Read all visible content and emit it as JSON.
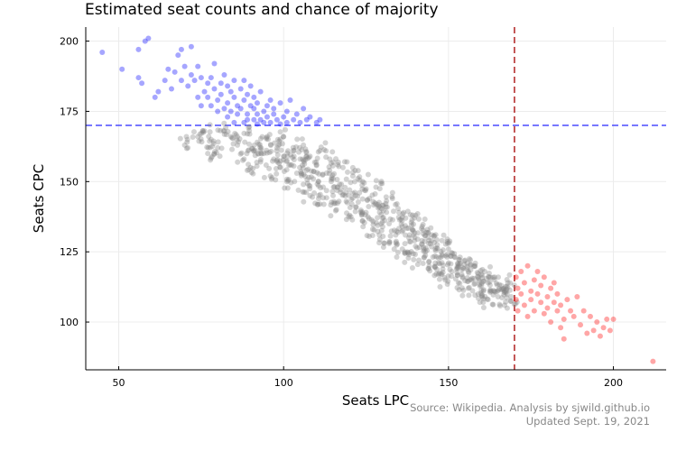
{
  "chart_data": {
    "type": "scatter",
    "title": "Estimated seat counts and chance of majority",
    "xlabel": "Seats LPC",
    "ylabel": "Seats CPC",
    "xlim": [
      40,
      216
    ],
    "ylim": [
      83,
      205
    ],
    "xticks": [
      50,
      100,
      150,
      200
    ],
    "yticks": [
      100,
      125,
      150,
      175,
      200
    ],
    "grid": true,
    "majority_threshold": 170,
    "reference_lines": [
      {
        "orientation": "horizontal",
        "value": 170,
        "color": "#4a4aff",
        "style": "dashed"
      },
      {
        "orientation": "vertical",
        "value": 170,
        "color": "#b02020",
        "style": "dashed"
      }
    ],
    "series": [
      {
        "color": "#0000ff",
        "points": [
          [
            45,
            196
          ],
          [
            51,
            190
          ],
          [
            56,
            197
          ],
          [
            56,
            187
          ],
          [
            57,
            185
          ],
          [
            58,
            200
          ],
          [
            59,
            201
          ],
          [
            61,
            180
          ],
          [
            62,
            182
          ],
          [
            64,
            186
          ],
          [
            65,
            190
          ],
          [
            66,
            183
          ],
          [
            67,
            189
          ],
          [
            68,
            195
          ],
          [
            69,
            197
          ],
          [
            69,
            186
          ],
          [
            70,
            191
          ],
          [
            71,
            184
          ],
          [
            72,
            198
          ],
          [
            72,
            188
          ],
          [
            73,
            186
          ],
          [
            74,
            180
          ],
          [
            74,
            191
          ],
          [
            75,
            187
          ],
          [
            75,
            177
          ],
          [
            76,
            182
          ],
          [
            77,
            180
          ],
          [
            77,
            185
          ],
          [
            78,
            177
          ],
          [
            78,
            187
          ],
          [
            79,
            183
          ],
          [
            79,
            192
          ],
          [
            80,
            175
          ],
          [
            80,
            179
          ],
          [
            81,
            185
          ],
          [
            81,
            181
          ],
          [
            82,
            176
          ],
          [
            82,
            188
          ],
          [
            83,
            173
          ],
          [
            83,
            178
          ],
          [
            83,
            184
          ],
          [
            84,
            182
          ],
          [
            84,
            175
          ],
          [
            85,
            180
          ],
          [
            85,
            186
          ],
          [
            85,
            171
          ],
          [
            86,
            177
          ],
          [
            86,
            174
          ],
          [
            87,
            183
          ],
          [
            87,
            176
          ],
          [
            88,
            171
          ],
          [
            88,
            179
          ],
          [
            88,
            186
          ],
          [
            89,
            174
          ],
          [
            89,
            181
          ],
          [
            89,
            172
          ],
          [
            90,
            177
          ],
          [
            90,
            184
          ],
          [
            91,
            172
          ],
          [
            91,
            176
          ],
          [
            91,
            180
          ],
          [
            92,
            174
          ],
          [
            92,
            170.5
          ],
          [
            92,
            178
          ],
          [
            93,
            172
          ],
          [
            93,
            182
          ],
          [
            94,
            175
          ],
          [
            94,
            171
          ],
          [
            95,
            177
          ],
          [
            95,
            173
          ],
          [
            96,
            179
          ],
          [
            96,
            171
          ],
          [
            97,
            174
          ],
          [
            97,
            176
          ],
          [
            98,
            172
          ],
          [
            99,
            178
          ],
          [
            99,
            170.5
          ],
          [
            100,
            173
          ],
          [
            101,
            175
          ],
          [
            101,
            171
          ],
          [
            102,
            179
          ],
          [
            103,
            172
          ],
          [
            104,
            174
          ],
          [
            105,
            171
          ],
          [
            106,
            176
          ],
          [
            107,
            172
          ],
          [
            108,
            173
          ],
          [
            110,
            171
          ],
          [
            111,
            172
          ]
        ]
      },
      {
        "color": "#808080",
        "points": [
          [
            70,
            163
          ],
          [
            74,
            166
          ],
          [
            76,
            168
          ],
          [
            77,
            160
          ],
          [
            78,
            165
          ],
          [
            80,
            162
          ],
          [
            82,
            168
          ],
          [
            84,
            166
          ],
          [
            86,
            163
          ],
          [
            88,
            158
          ],
          [
            89,
            167
          ],
          [
            90,
            155
          ],
          [
            91,
            161
          ],
          [
            92,
            164
          ],
          [
            93,
            157
          ],
          [
            94,
            160
          ],
          [
            95,
            166
          ],
          [
            96,
            152
          ],
          [
            97,
            158
          ],
          [
            98,
            162
          ],
          [
            99,
            155
          ],
          [
            100,
            159
          ],
          [
            100,
            166
          ],
          [
            101,
            150
          ],
          [
            102,
            156
          ],
          [
            103,
            161
          ],
          [
            104,
            153
          ],
          [
            105,
            158
          ],
          [
            106,
            149
          ],
          [
            106,
            163
          ],
          [
            107,
            154
          ],
          [
            108,
            145
          ],
          [
            108,
            159
          ],
          [
            109,
            151
          ],
          [
            110,
            156
          ],
          [
            111,
            142
          ],
          [
            111,
            161
          ],
          [
            112,
            148
          ],
          [
            113,
            153
          ],
          [
            114,
            158
          ],
          [
            115,
            145
          ],
          [
            115,
            151
          ],
          [
            116,
            140
          ],
          [
            117,
            149
          ],
          [
            118,
            155
          ],
          [
            119,
            143
          ],
          [
            120,
            147
          ],
          [
            120,
            138
          ],
          [
            121,
            152
          ],
          [
            122,
            141
          ],
          [
            123,
            146
          ],
          [
            124,
            136
          ],
          [
            124,
            150
          ],
          [
            125,
            139
          ],
          [
            126,
            144
          ],
          [
            127,
            133
          ],
          [
            128,
            142
          ],
          [
            128,
            148
          ],
          [
            129,
            131
          ],
          [
            130,
            137
          ],
          [
            131,
            141
          ],
          [
            132,
            128
          ],
          [
            132,
            135
          ],
          [
            133,
            144
          ],
          [
            134,
            131
          ],
          [
            135,
            139
          ],
          [
            136,
            126
          ],
          [
            136,
            134
          ],
          [
            137,
            137
          ],
          [
            138,
            124
          ],
          [
            138,
            130
          ],
          [
            139,
            133
          ],
          [
            140,
            127
          ],
          [
            140,
            138
          ],
          [
            141,
            122
          ],
          [
            142,
            129
          ],
          [
            142,
            134
          ],
          [
            143,
            125
          ],
          [
            144,
            119
          ],
          [
            144,
            128
          ],
          [
            145,
            131
          ],
          [
            146,
            121
          ],
          [
            146,
            126
          ],
          [
            147,
            117
          ],
          [
            148,
            124
          ],
          [
            148,
            129
          ],
          [
            149,
            115
          ],
          [
            150,
            121
          ],
          [
            150,
            126
          ],
          [
            151,
            118
          ],
          [
            152,
            123
          ],
          [
            153,
            114
          ],
          [
            153,
            120
          ],
          [
            154,
            117
          ],
          [
            155,
            122
          ],
          [
            156,
            112
          ],
          [
            156,
            118
          ],
          [
            157,
            115
          ],
          [
            158,
            120
          ],
          [
            159,
            110
          ],
          [
            159,
            116
          ],
          [
            160,
            113
          ],
          [
            161,
            118
          ],
          [
            162,
            108
          ],
          [
            162,
            114
          ],
          [
            163,
            111
          ],
          [
            164,
            116
          ],
          [
            165,
            109
          ],
          [
            166,
            113
          ],
          [
            167,
            106
          ],
          [
            167,
            111
          ],
          [
            168,
            114
          ],
          [
            169,
            109
          ]
        ]
      },
      {
        "color": "#ff0000",
        "points": [
          [
            170.5,
            108
          ],
          [
            170.5,
            116
          ],
          [
            171,
            104
          ],
          [
            171,
            112
          ],
          [
            172,
            118
          ],
          [
            172,
            110
          ],
          [
            173,
            106
          ],
          [
            173,
            114
          ],
          [
            174,
            120
          ],
          [
            174,
            102
          ],
          [
            175,
            111
          ],
          [
            175,
            108
          ],
          [
            176,
            115
          ],
          [
            176,
            104
          ],
          [
            177,
            110
          ],
          [
            177,
            118
          ],
          [
            178,
            107
          ],
          [
            178,
            113
          ],
          [
            179,
            103
          ],
          [
            179,
            116
          ],
          [
            180,
            109
          ],
          [
            180,
            105
          ],
          [
            181,
            112
          ],
          [
            181,
            100
          ],
          [
            182,
            107
          ],
          [
            182,
            114
          ],
          [
            183,
            104
          ],
          [
            183,
            110
          ],
          [
            184,
            98
          ],
          [
            184,
            106
          ],
          [
            185,
            101
          ],
          [
            185,
            94
          ],
          [
            186,
            108
          ],
          [
            187,
            104
          ],
          [
            188,
            102
          ],
          [
            189,
            109
          ],
          [
            190,
            99
          ],
          [
            191,
            104
          ],
          [
            192,
            96
          ],
          [
            193,
            102
          ],
          [
            194,
            97
          ],
          [
            195,
            100
          ],
          [
            196,
            95
          ],
          [
            197,
            98
          ],
          [
            198,
            101
          ],
          [
            199,
            97
          ],
          [
            200,
            101
          ],
          [
            212,
            86
          ]
        ]
      }
    ]
  },
  "footer": {
    "source_line": "Source: Wikipedia. Analysis by sjwild.github.io",
    "updated_line": "Updated Sept. 19, 2021"
  }
}
